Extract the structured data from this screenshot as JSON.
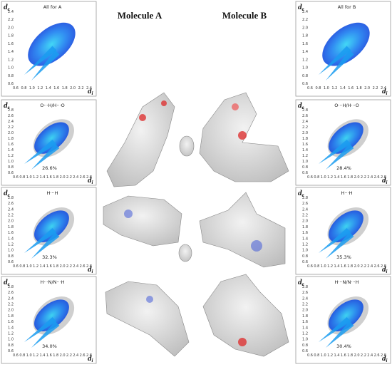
{
  "headers": {
    "molecule_a": "Molecule A",
    "molecule_b": "Molecule B"
  },
  "panels": [
    {
      "column": "left",
      "label": "All for A",
      "yticks": [
        "2.4",
        "2.2",
        "2.0",
        "1.8",
        "1.6",
        "1.4",
        "1.2",
        "1.0",
        "0.8",
        "0.6"
      ],
      "xticks": [
        "0.6",
        "0.8",
        "1.0",
        "1.2",
        "1.4",
        "1.6",
        "1.8",
        "2.0",
        "2.2",
        "2.4"
      ],
      "y_symbol": "d",
      "y_sub": "e",
      "x_symbol": "d",
      "x_sub": "i"
    },
    {
      "column": "left",
      "label": "O···H/H···O",
      "percent": "26.6%",
      "yticks": [
        "2.8",
        "2.6",
        "2.4",
        "2.2",
        "2.0",
        "1.8",
        "1.6",
        "1.4",
        "1.2",
        "1.0",
        "0.8",
        "0.6"
      ],
      "xticks": [
        "0.6",
        "0.8",
        "1.0",
        "1.2",
        "1.4",
        "1.6",
        "1.8",
        "2.0",
        "2.2",
        "2.4",
        "2.6",
        "2.8"
      ],
      "y_symbol": "d",
      "y_sub": "e",
      "x_symbol": "d",
      "x_sub": "i"
    },
    {
      "column": "left",
      "label": "H···H",
      "percent": "32.3%",
      "yticks": [
        "2.8",
        "2.6",
        "2.4",
        "2.2",
        "2.0",
        "1.8",
        "1.6",
        "1.4",
        "1.2",
        "1.0",
        "0.8",
        "0.6"
      ],
      "xticks": [
        "0.6",
        "0.8",
        "1.0",
        "1.2",
        "1.4",
        "1.6",
        "1.8",
        "2.0",
        "2.2",
        "2.4",
        "2.6",
        "2.8"
      ],
      "y_symbol": "d",
      "y_sub": "e",
      "x_symbol": "d",
      "x_sub": "i"
    },
    {
      "column": "left",
      "label": "H···N/N···H",
      "percent": "34.0%",
      "yticks": [
        "2.8",
        "2.6",
        "2.4",
        "2.2",
        "2.0",
        "1.8",
        "1.6",
        "1.4",
        "1.2",
        "1.0",
        "0.8",
        "0.6"
      ],
      "xticks": [
        "0.6",
        "0.8",
        "1.0",
        "1.2",
        "1.4",
        "1.6",
        "1.8",
        "2.0",
        "2.2",
        "2.4",
        "2.6",
        "2.8"
      ],
      "y_symbol": "d",
      "y_sub": "e",
      "x_symbol": "d",
      "x_sub": "i"
    },
    {
      "column": "right",
      "label": "All for B",
      "yticks": [
        "2.4",
        "2.2",
        "2.0",
        "1.8",
        "1.6",
        "1.4",
        "1.2",
        "1.0",
        "0.8",
        "0.6"
      ],
      "xticks": [
        "0.6",
        "0.8",
        "1.0",
        "1.2",
        "1.4",
        "1.6",
        "1.8",
        "2.0",
        "2.2",
        "2.4"
      ],
      "y_symbol": "d",
      "y_sub": "e",
      "x_symbol": "d",
      "x_sub": "i"
    },
    {
      "column": "right",
      "label": "O···H/H···O",
      "percent": "28.4%",
      "yticks": [
        "2.8",
        "2.6",
        "2.4",
        "2.2",
        "2.0",
        "1.8",
        "1.6",
        "1.4",
        "1.2",
        "1.0",
        "0.8",
        "0.6"
      ],
      "xticks": [
        "0.6",
        "0.8",
        "1.0",
        "1.2",
        "1.4",
        "1.6",
        "1.8",
        "2.0",
        "2.2",
        "2.4",
        "2.6",
        "2.8"
      ],
      "y_symbol": "d",
      "y_sub": "e",
      "x_symbol": "d",
      "x_sub": "i"
    },
    {
      "column": "right",
      "label": "H···H",
      "percent": "35.3%",
      "yticks": [
        "2.8",
        "2.6",
        "2.4",
        "2.2",
        "2.0",
        "1.8",
        "1.6",
        "1.4",
        "1.2",
        "1.0",
        "0.8",
        "0.6"
      ],
      "xticks": [
        "0.6",
        "0.8",
        "1.0",
        "1.2",
        "1.4",
        "1.6",
        "1.8",
        "2.0",
        "2.2",
        "2.4",
        "2.6",
        "2.8"
      ],
      "y_symbol": "d",
      "y_sub": "e",
      "x_symbol": "d",
      "x_sub": "i"
    },
    {
      "column": "right",
      "label": "H···N/N···H",
      "percent": "30.4%",
      "yticks": [
        "2.8",
        "2.6",
        "2.4",
        "2.2",
        "2.0",
        "1.8",
        "1.6",
        "1.4",
        "1.2",
        "1.0",
        "0.8",
        "0.6"
      ],
      "xticks": [
        "0.6",
        "0.8",
        "1.0",
        "1.2",
        "1.4",
        "1.6",
        "1.8",
        "2.0",
        "2.2",
        "2.4",
        "2.6",
        "2.8"
      ],
      "y_symbol": "d",
      "y_sub": "e",
      "x_symbol": "d",
      "x_sub": "i"
    }
  ]
}
